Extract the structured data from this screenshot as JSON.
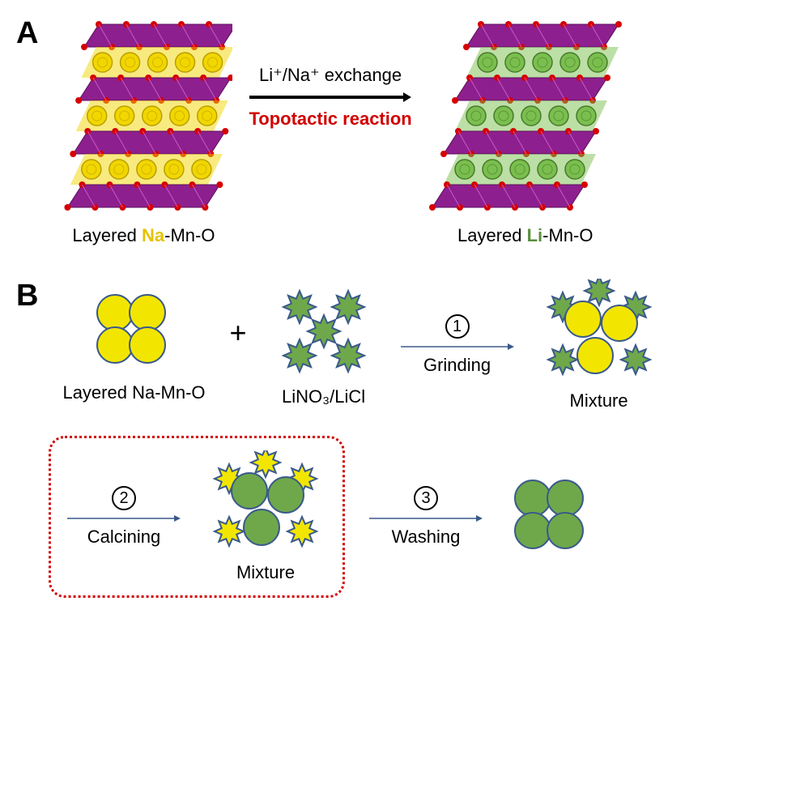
{
  "panelA": {
    "label": "A",
    "leftStruct": {
      "caption_prefix": "Layered ",
      "caption_ion": "Na",
      "caption_suffix": "-Mn-O",
      "layers": 4,
      "ionLayers": 3,
      "slabColor": "#8e1f8e",
      "ionColor": "#f2d600",
      "ionStroke": "#b8a000",
      "oxygenColor": "#d60000",
      "shear": -12
    },
    "arrow": {
      "top": "Li⁺/Na⁺ exchange",
      "bottom": "Topotactic reaction",
      "color": "#000000"
    },
    "rightStruct": {
      "caption_prefix": "Layered ",
      "caption_ion": "Li",
      "caption_suffix": "-Mn-O",
      "layers": 4,
      "ionLayers": 3,
      "slabColor": "#8e1f8e",
      "ionColor": "#7abf4e",
      "ionStroke": "#4a7a2e",
      "oxygenColor": "#d60000",
      "shear": 12
    }
  },
  "panelB": {
    "label": "B",
    "reagent1": {
      "caption_prefix": "Layered ",
      "caption_ion": "Na",
      "caption_suffix": "-Mn-O",
      "shape": "circle",
      "fill": "#f2e600",
      "stroke": "#3a5a8a"
    },
    "reagent2": {
      "caption_li": "Li",
      "caption_no3": "NO₃/",
      "caption_li2": "Li",
      "caption_cl": "Cl",
      "shape": "star",
      "fill": "#6fa84a",
      "stroke": "#3a5a8a"
    },
    "step1": {
      "num": "1",
      "label": "Grinding"
    },
    "mixture1": {
      "caption": "Mixture",
      "circles": {
        "fill": "#f2e600",
        "stroke": "#3a5a8a"
      },
      "stars": {
        "fill": "#6fa84a",
        "stroke": "#3a5a8a"
      }
    },
    "step2": {
      "num": "2",
      "label": "Calcining"
    },
    "mixture2": {
      "caption": "Mixture",
      "circles": {
        "fill": "#6fa84a",
        "stroke": "#3a5a8a"
      },
      "stars": {
        "fill": "#f2e600",
        "stroke": "#3a5a8a"
      }
    },
    "step3": {
      "num": "3",
      "label": "Washing"
    },
    "product": {
      "shape": "circle",
      "fill": "#6fa84a",
      "stroke": "#3a5a8a"
    },
    "arrowColor": "#3a5a8a",
    "boxColor": "#d10000"
  },
  "fonts": {
    "panelLabel": 38,
    "caption": 22,
    "step": 22
  }
}
